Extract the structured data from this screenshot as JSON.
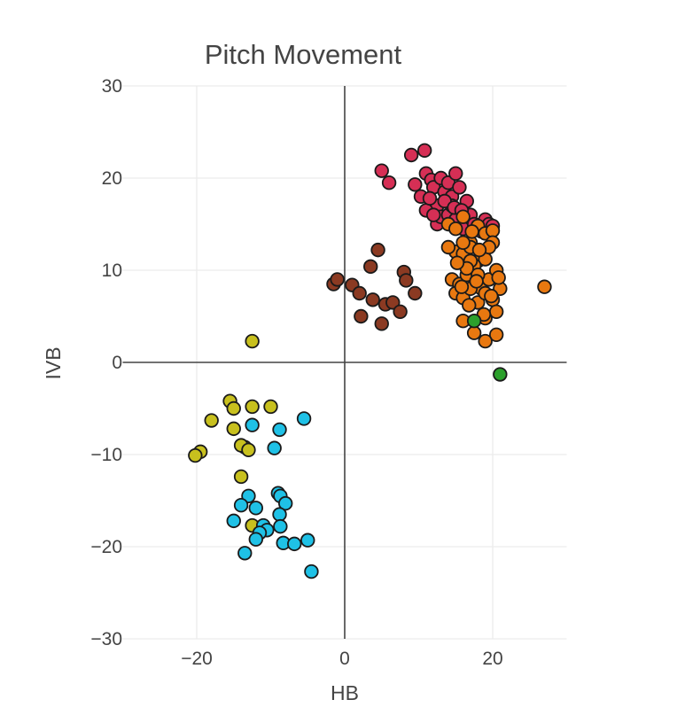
{
  "chart_data": {
    "type": "scatter",
    "title": "Pitch Movement",
    "xlabel": "HB",
    "ylabel": "IVB",
    "xlim": [
      -30,
      30
    ],
    "ylim": [
      -30,
      30
    ],
    "xticks": [
      -20,
      0,
      20
    ],
    "yticks": [
      -30,
      -20,
      -10,
      0,
      10,
      20,
      30
    ],
    "grid": true,
    "legend": "none",
    "series": [
      {
        "color": "#d62f55",
        "points": [
          [
            9,
            22.5
          ],
          [
            10.8,
            23
          ],
          [
            5,
            20.8
          ],
          [
            6,
            19.5
          ],
          [
            9.5,
            19.3
          ],
          [
            10.3,
            18
          ],
          [
            11,
            20.5
          ],
          [
            11.7,
            19.8
          ],
          [
            12,
            19
          ],
          [
            12.5,
            17
          ],
          [
            13,
            20
          ],
          [
            13.5,
            18.5
          ],
          [
            14,
            19.5
          ],
          [
            14.5,
            18
          ],
          [
            15,
            20.5
          ],
          [
            15.5,
            19
          ],
          [
            11,
            16.5
          ],
          [
            12.5,
            15
          ],
          [
            13,
            15.8
          ],
          [
            14,
            16
          ],
          [
            14.5,
            17
          ],
          [
            15,
            15.5
          ],
          [
            16,
            14.5
          ],
          [
            16.5,
            17.5
          ],
          [
            17,
            16
          ],
          [
            17.5,
            15
          ],
          [
            18,
            14.8
          ],
          [
            18.5,
            14.2
          ],
          [
            19,
            15.5
          ],
          [
            19.5,
            15
          ],
          [
            20,
            14.8
          ],
          [
            12,
            16
          ],
          [
            13.5,
            17.5
          ],
          [
            14.8,
            16.8
          ],
          [
            15.8,
            16.5
          ],
          [
            11.5,
            17.8
          ]
        ]
      },
      {
        "color": "#e87810",
        "points": [
          [
            14,
            15
          ],
          [
            15,
            14.5
          ],
          [
            16,
            15.8
          ],
          [
            17,
            13
          ],
          [
            18,
            14.8
          ],
          [
            19,
            14
          ],
          [
            20,
            14.3
          ],
          [
            15,
            12
          ],
          [
            16,
            11.8
          ],
          [
            17,
            12.5
          ],
          [
            18,
            11
          ],
          [
            19,
            11.2
          ],
          [
            20,
            13
          ],
          [
            14.5,
            9
          ],
          [
            15.5,
            8.5
          ],
          [
            16.5,
            9.5
          ],
          [
            17.5,
            10.5
          ],
          [
            18.5,
            8
          ],
          [
            19.5,
            9
          ],
          [
            20.5,
            10
          ],
          [
            15,
            7.5
          ],
          [
            16,
            7
          ],
          [
            17,
            8
          ],
          [
            18,
            6.5
          ],
          [
            19,
            7.5
          ],
          [
            20,
            6.8
          ],
          [
            21,
            8
          ],
          [
            16,
            4.5
          ],
          [
            17.5,
            3.2
          ],
          [
            19,
            4.8
          ],
          [
            20.5,
            3
          ],
          [
            19,
            2.3
          ],
          [
            27,
            8.2
          ],
          [
            14,
            12.5
          ],
          [
            16,
            13
          ],
          [
            17,
            11
          ],
          [
            18,
            9.5
          ],
          [
            19.5,
            12.5
          ],
          [
            20.5,
            5.5
          ],
          [
            16.5,
            10.2
          ],
          [
            18.2,
            12.2
          ],
          [
            15.2,
            10.8
          ],
          [
            17.8,
            8.8
          ],
          [
            20.8,
            9.2
          ],
          [
            19.8,
            7.2
          ],
          [
            16.8,
            6.2
          ],
          [
            18.8,
            5.2
          ],
          [
            17.2,
            14.2
          ],
          [
            15.8,
            8.2
          ]
        ]
      },
      {
        "color": "#8b3a22",
        "points": [
          [
            4.5,
            12.2
          ],
          [
            3.5,
            10.4
          ],
          [
            8,
            9.8
          ],
          [
            -1.5,
            8.5
          ],
          [
            -1,
            9
          ],
          [
            1,
            8.4
          ],
          [
            2,
            7.5
          ],
          [
            3.8,
            6.8
          ],
          [
            5.5,
            6.3
          ],
          [
            6.5,
            6.5
          ],
          [
            8.3,
            8.9
          ],
          [
            9.5,
            7.5
          ],
          [
            2.2,
            5
          ],
          [
            5,
            4.2
          ],
          [
            7.5,
            5.5
          ]
        ]
      },
      {
        "color": "#2ca02c",
        "points": [
          [
            17.5,
            4.5
          ],
          [
            21,
            -1.3
          ]
        ]
      },
      {
        "color": "#c8c01e",
        "points": [
          [
            -12.5,
            2.3
          ],
          [
            -15.5,
            -4.2
          ],
          [
            -15,
            -5
          ],
          [
            -12.5,
            -4.8
          ],
          [
            -10,
            -4.8
          ],
          [
            -18,
            -6.3
          ],
          [
            -15,
            -7.2
          ],
          [
            -13.5,
            -9.2
          ],
          [
            -14,
            -9
          ],
          [
            -13,
            -9.5
          ],
          [
            -19.5,
            -9.7
          ],
          [
            -20.2,
            -10.1
          ],
          [
            -14,
            -12.4
          ],
          [
            -12.5,
            -17.7
          ]
        ]
      },
      {
        "color": "#1fc1e6",
        "points": [
          [
            -5.5,
            -6.1
          ],
          [
            -12.5,
            -6.8
          ],
          [
            -8.8,
            -7.3
          ],
          [
            -9.5,
            -9.3
          ],
          [
            -13,
            -14.5
          ],
          [
            -9,
            -14.2
          ],
          [
            -8.7,
            -14.5
          ],
          [
            -14,
            -15.5
          ],
          [
            -12,
            -15.8
          ],
          [
            -8,
            -15.3
          ],
          [
            -8.8,
            -16.5
          ],
          [
            -15,
            -17.2
          ],
          [
            -11,
            -17.7
          ],
          [
            -10.5,
            -18.2
          ],
          [
            -8.7,
            -17.8
          ],
          [
            -11.5,
            -18.5
          ],
          [
            -12,
            -19.2
          ],
          [
            -8.3,
            -19.6
          ],
          [
            -6.8,
            -19.7
          ],
          [
            -5,
            -19.3
          ],
          [
            -13.5,
            -20.7
          ],
          [
            -4.5,
            -22.7
          ]
        ]
      }
    ]
  }
}
